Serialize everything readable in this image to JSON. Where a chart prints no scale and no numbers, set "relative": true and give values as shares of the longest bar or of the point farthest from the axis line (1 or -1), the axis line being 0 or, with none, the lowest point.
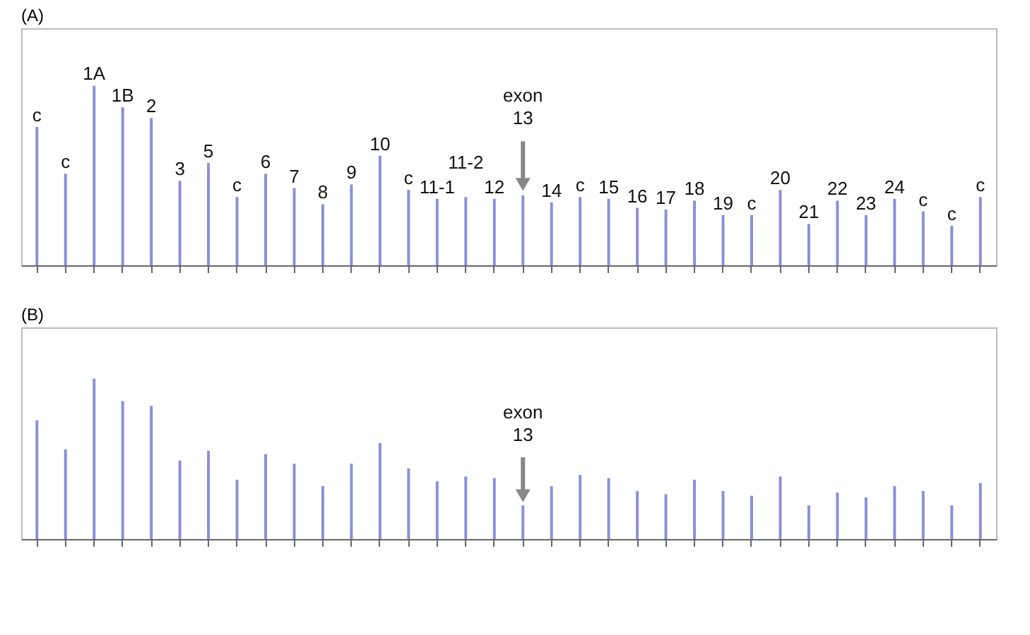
{
  "chart_data": [
    {
      "type": "bar",
      "title": "(A)",
      "relative": true,
      "color": "#8c90d8",
      "annotations": [
        "exon 13"
      ],
      "categories": [
        "c",
        "c",
        "1A",
        "1B",
        "2",
        "3",
        "5",
        "c",
        "6",
        "7",
        "8",
        "9",
        "10",
        "c",
        "11-1",
        "11-2",
        "12",
        null,
        "14",
        "c",
        "15",
        "16",
        "17",
        "18",
        "19",
        "c",
        "20",
        "21",
        "22",
        "23",
        "24",
        "c",
        "c",
        "c"
      ],
      "values": [
        0.77,
        0.51,
        1,
        0.88,
        0.82,
        0.47,
        0.57,
        0.38,
        0.51,
        0.43,
        0.34,
        0.45,
        0.61,
        0.42,
        0.37,
        0.38,
        0.37,
        0.39,
        0.35,
        0.38,
        0.37,
        0.32,
        0.31,
        0.36,
        0.28,
        0.28,
        0.42,
        0.23,
        0.36,
        0.28,
        0.37,
        0.3,
        0.22,
        0.38
      ]
    },
    {
      "type": "bar",
      "title": "(B)",
      "relative": true,
      "color": "#8c90d8",
      "annotations": [
        "exon 13"
      ],
      "categories": [
        null,
        null,
        null,
        null,
        null,
        null,
        null,
        null,
        null,
        null,
        null,
        null,
        null,
        null,
        null,
        null,
        null,
        null,
        null,
        null,
        null,
        null,
        null,
        null,
        null,
        null,
        null,
        null,
        null,
        null,
        null,
        null,
        null,
        null
      ],
      "values": [
        0.74,
        0.56,
        1,
        0.86,
        0.83,
        0.49,
        0.55,
        0.37,
        0.53,
        0.47,
        0.33,
        0.47,
        0.6,
        0.44,
        0.36,
        0.39,
        0.38,
        0.21,
        0.33,
        0.4,
        0.38,
        0.3,
        0.28,
        0.37,
        0.3,
        0.27,
        0.39,
        0.21,
        0.29,
        0.26,
        0.33,
        0.3,
        0.21,
        0.35
      ]
    }
  ]
}
